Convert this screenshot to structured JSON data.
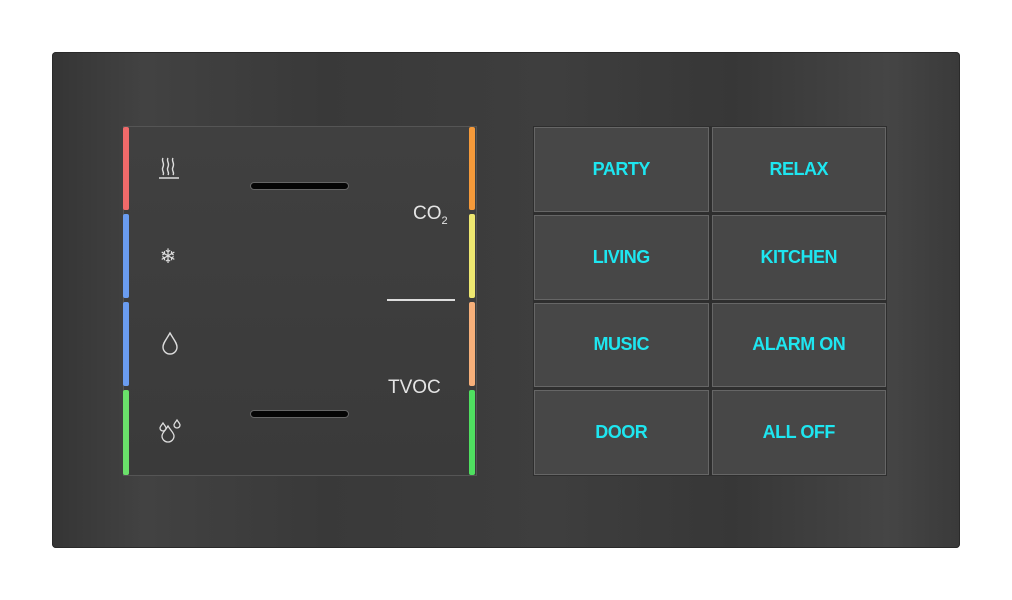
{
  "sensor_module": {
    "icons": [
      "heating-icon",
      "snowflake-icon",
      "droplet-icon",
      "humidity-icon"
    ],
    "co2_label": "CO",
    "co2_sub": "2",
    "tvoc_label": "TVOC",
    "left_leds": [
      "#f06a6a",
      "#6a9cf0",
      "#6a9cf0",
      "#6ae06a"
    ],
    "right_leds": [
      "#f59a3a",
      "#eee870",
      "#f7b07a",
      "#4fe060"
    ]
  },
  "buttons": [
    {
      "label": "PARTY"
    },
    {
      "label": "RELAX"
    },
    {
      "label": "LIVING"
    },
    {
      "label": "KITCHEN"
    },
    {
      "label": "MUSIC"
    },
    {
      "label": "ALARM ON"
    },
    {
      "label": "DOOR"
    },
    {
      "label": "ALL OFF"
    }
  ],
  "accent_color": "#1ee6f0"
}
